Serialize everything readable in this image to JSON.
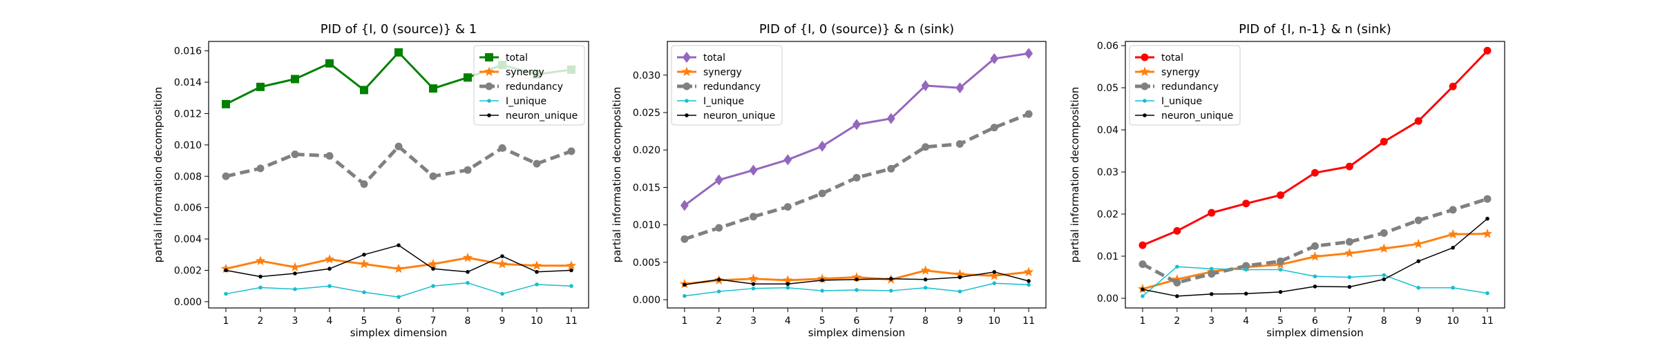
{
  "chart_data": [
    {
      "type": "line",
      "title": "PID of {I, 0 (source)} & 1",
      "xlabel": "simplex dimension",
      "ylabel": "partial information decomposition",
      "x": [
        1,
        2,
        3,
        4,
        5,
        6,
        7,
        8,
        9,
        10,
        11
      ],
      "xlim": [
        0.5,
        11.5
      ],
      "ylim": [
        -0.0004,
        0.0166
      ],
      "yticks": [
        0.0,
        0.002,
        0.004,
        0.006,
        0.008,
        0.01,
        0.012,
        0.014,
        0.016
      ],
      "ytick_labels": [
        "0.000",
        "0.002",
        "0.004",
        "0.006",
        "0.008",
        "0.010",
        "0.012",
        "0.014",
        "0.016"
      ],
      "legend": "upper right",
      "series": [
        {
          "name": "total",
          "color": "#008000",
          "marker": "square",
          "style": "solid",
          "width": 3,
          "values": [
            0.0126,
            0.0137,
            0.0142,
            0.0152,
            0.0135,
            0.0159,
            0.0136,
            0.0143,
            0.0151,
            0.0145,
            0.0148
          ]
        },
        {
          "name": "synergy",
          "color": "#ff7f0e",
          "marker": "star",
          "style": "solid",
          "width": 3,
          "values": [
            0.0021,
            0.0026,
            0.0022,
            0.0027,
            0.0024,
            0.0021,
            0.0024,
            0.0028,
            0.0024,
            0.0023,
            0.0023
          ]
        },
        {
          "name": "redundancy",
          "color": "#808080",
          "marker": "circle",
          "style": "dashed",
          "width": 5,
          "values": [
            0.008,
            0.0085,
            0.0094,
            0.0093,
            0.0075,
            0.0099,
            0.008,
            0.0084,
            0.0098,
            0.0088,
            0.0096
          ]
        },
        {
          "name": "I_unique",
          "color": "#17becf",
          "marker": "dot",
          "style": "solid",
          "width": 1.5,
          "values": [
            0.0005,
            0.0009,
            0.0008,
            0.001,
            0.0006,
            0.0003,
            0.001,
            0.0012,
            0.0005,
            0.0011,
            0.001
          ]
        },
        {
          "name": "neuron_unique",
          "color": "#000000",
          "marker": "dot",
          "style": "solid",
          "width": 1.5,
          "values": [
            0.002,
            0.0016,
            0.0018,
            0.0021,
            0.003,
            0.0036,
            0.0021,
            0.0019,
            0.0029,
            0.0019,
            0.002
          ]
        }
      ]
    },
    {
      "type": "line",
      "title": "PID of {I, 0 (source)} & n (sink)",
      "xlabel": "simplex dimension",
      "ylabel": "partial information decomposition",
      "x": [
        1,
        2,
        3,
        4,
        5,
        6,
        7,
        8,
        9,
        10,
        11
      ],
      "xlim": [
        0.5,
        11.5
      ],
      "ylim": [
        -0.0011,
        0.0345
      ],
      "yticks": [
        0.0,
        0.005,
        0.01,
        0.015,
        0.02,
        0.025,
        0.03
      ],
      "ytick_labels": [
        "0.000",
        "0.005",
        "0.010",
        "0.015",
        "0.020",
        "0.025",
        "0.030"
      ],
      "legend": "upper left",
      "series": [
        {
          "name": "total",
          "color": "#9467bd",
          "marker": "diamond",
          "style": "solid",
          "width": 3,
          "values": [
            0.0126,
            0.016,
            0.0173,
            0.0187,
            0.0205,
            0.0234,
            0.0242,
            0.0286,
            0.0283,
            0.0322,
            0.0329
          ]
        },
        {
          "name": "synergy",
          "color": "#ff7f0e",
          "marker": "star",
          "style": "solid",
          "width": 3,
          "values": [
            0.0021,
            0.0026,
            0.0028,
            0.0026,
            0.0028,
            0.003,
            0.0027,
            0.0039,
            0.0034,
            0.0032,
            0.0037
          ]
        },
        {
          "name": "redundancy",
          "color": "#808080",
          "marker": "circle",
          "style": "dashed",
          "width": 5,
          "values": [
            0.0081,
            0.0096,
            0.0111,
            0.0124,
            0.0142,
            0.0163,
            0.0175,
            0.0204,
            0.0208,
            0.023,
            0.0248
          ]
        },
        {
          "name": "I_unique",
          "color": "#17becf",
          "marker": "dot",
          "style": "solid",
          "width": 1.5,
          "values": [
            0.0005,
            0.0011,
            0.0015,
            0.0016,
            0.0012,
            0.0013,
            0.0012,
            0.0016,
            0.0011,
            0.0022,
            0.002
          ]
        },
        {
          "name": "neuron_unique",
          "color": "#000000",
          "marker": "dot",
          "style": "solid",
          "width": 1.5,
          "values": [
            0.002,
            0.0027,
            0.0021,
            0.0021,
            0.0026,
            0.0027,
            0.0028,
            0.0027,
            0.003,
            0.0037,
            0.0025
          ]
        }
      ]
    },
    {
      "type": "line",
      "title": "PID of {I, n-1} & n (sink)",
      "xlabel": "simplex dimension",
      "ylabel": "partial information decomposition",
      "x": [
        1,
        2,
        3,
        4,
        5,
        6,
        7,
        8,
        9,
        10,
        11
      ],
      "xlim": [
        0.5,
        11.5
      ],
      "ylim": [
        -0.0023,
        0.061
      ],
      "yticks": [
        0.0,
        0.01,
        0.02,
        0.03,
        0.04,
        0.05,
        0.06
      ],
      "ytick_labels": [
        "0.00",
        "0.01",
        "0.02",
        "0.03",
        "0.04",
        "0.05",
        "0.06"
      ],
      "legend": "upper left",
      "series": [
        {
          "name": "total",
          "color": "#ff0000",
          "marker": "circle",
          "style": "solid",
          "width": 3,
          "values": [
            0.0126,
            0.016,
            0.0203,
            0.0225,
            0.0245,
            0.0298,
            0.0313,
            0.0372,
            0.0421,
            0.0503,
            0.0588
          ]
        },
        {
          "name": "synergy",
          "color": "#ff7f0e",
          "marker": "star",
          "style": "solid",
          "width": 3,
          "values": [
            0.0022,
            0.0045,
            0.0063,
            0.0074,
            0.008,
            0.0099,
            0.0107,
            0.0118,
            0.0129,
            0.0152,
            0.0153
          ]
        },
        {
          "name": "redundancy",
          "color": "#808080",
          "marker": "circle",
          "style": "dashed",
          "width": 5,
          "values": [
            0.0081,
            0.0037,
            0.0058,
            0.0077,
            0.0088,
            0.0124,
            0.0134,
            0.0155,
            0.0185,
            0.021,
            0.0236
          ]
        },
        {
          "name": "I_unique",
          "color": "#17becf",
          "marker": "dot",
          "style": "solid",
          "width": 1.5,
          "values": [
            0.0005,
            0.0075,
            0.007,
            0.0068,
            0.0068,
            0.0052,
            0.005,
            0.0055,
            0.0025,
            0.0025,
            0.0012
          ]
        },
        {
          "name": "neuron_unique",
          "color": "#000000",
          "marker": "dot",
          "style": "solid",
          "width": 1.5,
          "values": [
            0.0021,
            0.0005,
            0.001,
            0.0011,
            0.0015,
            0.0028,
            0.0027,
            0.0045,
            0.0088,
            0.012,
            0.0189
          ]
        }
      ]
    }
  ]
}
